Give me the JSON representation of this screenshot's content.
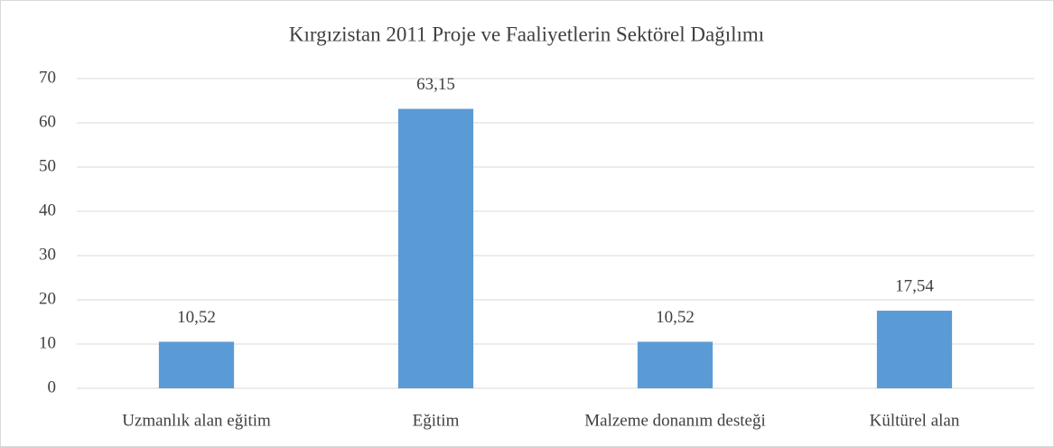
{
  "chart_data": {
    "type": "bar",
    "title": "Kırgızistan 2011 Proje ve Faaliyetlerin Sektörel Dağılımı",
    "categories": [
      "Uzmanlık alan eğitim",
      "Eğitim",
      "Malzeme donanım desteği",
      "Kültürel alan"
    ],
    "values": [
      10.52,
      63.15,
      10.52,
      17.54
    ],
    "value_labels": [
      "10,52",
      "63,15",
      "10,52",
      "17,54"
    ],
    "color": "#5b9bd5",
    "ylim": [
      0,
      70
    ],
    "yticks": [
      0,
      10,
      20,
      30,
      40,
      50,
      60,
      70
    ],
    "grid": true
  }
}
